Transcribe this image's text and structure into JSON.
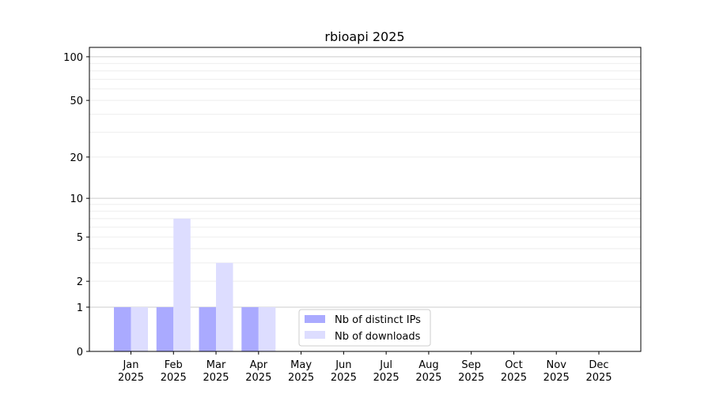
{
  "chart_data": {
    "type": "bar",
    "title": "rbioapi 2025",
    "xlabel": "",
    "ylabel": "",
    "yscale": "log(1+y)",
    "ylim": [
      0,
      116
    ],
    "yticks": [
      0,
      1,
      2,
      5,
      10,
      20,
      50,
      100
    ],
    "grid": true,
    "legend_position": "lower-center",
    "categories": [
      "Jan\n2025",
      "Feb\n2025",
      "Mar\n2025",
      "Apr\n2025",
      "May\n2025",
      "Jun\n2025",
      "Jul\n2025",
      "Aug\n2025",
      "Sep\n2025",
      "Oct\n2025",
      "Nov\n2025",
      "Dec\n2025"
    ],
    "series": [
      {
        "name": "Nb of distinct IPs",
        "color": "#aaaaff",
        "values": [
          1,
          1,
          1,
          1,
          0,
          0,
          0,
          0,
          0,
          0,
          0,
          0
        ]
      },
      {
        "name": "Nb of downloads",
        "color": "#ddddff",
        "values": [
          1,
          7,
          3,
          1,
          0,
          0,
          0,
          0,
          0,
          0,
          0,
          0
        ]
      }
    ]
  }
}
